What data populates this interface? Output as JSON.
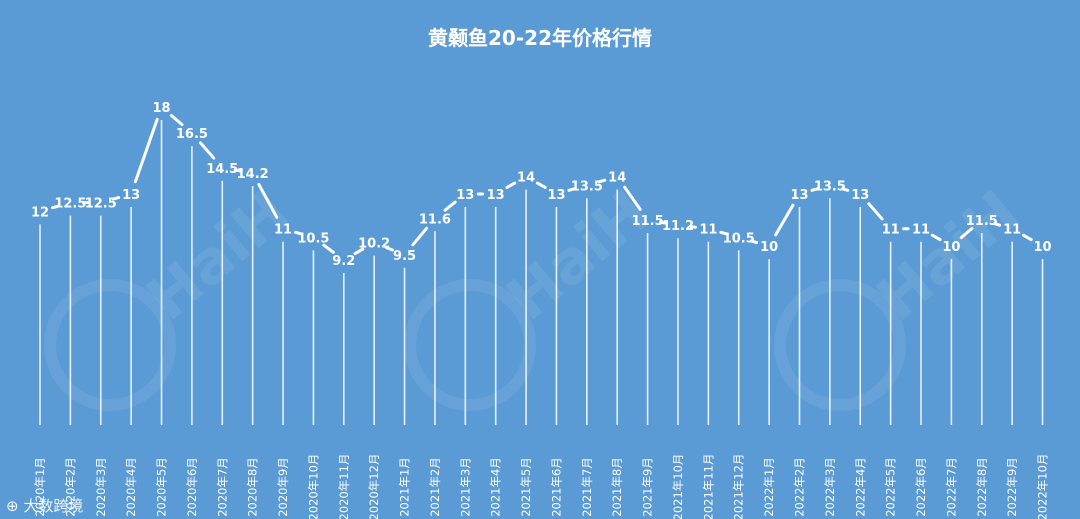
{
  "chart_data": {
    "type": "line",
    "title": "黄颡鱼20-22年价格行情",
    "xlabel": "",
    "ylabel": "",
    "grid": false,
    "legend": "none",
    "ylim": [
      0,
      18
    ],
    "categories": [
      "2020年1月",
      "2020年2月",
      "2020年3月",
      "2020年4月",
      "2020年5月",
      "2020年6月",
      "2020年7月",
      "2020年8月",
      "2020年9月",
      "2020年10月",
      "2020年11月",
      "2020年12月",
      "2021年1月",
      "2021年2月",
      "2021年3月",
      "2021年4月",
      "2021年5月",
      "2021年6月",
      "2021年7月",
      "2021年8月",
      "2021年9月",
      "2021年10月",
      "2021年11月",
      "2021年12月",
      "2022年1月",
      "2022年2月",
      "2022年3月",
      "2022年4月",
      "2022年5月",
      "2022年6月",
      "2022年7月",
      "2022年8月",
      "2022年9月",
      "2022年10月"
    ],
    "series": [
      {
        "values": [
          12,
          12.5,
          12.5,
          13,
          18,
          16.5,
          14.5,
          14.2,
          11,
          10.5,
          9.2,
          10.2,
          9.5,
          11.6,
          13,
          13,
          14,
          13,
          13.5,
          14,
          11.5,
          11.2,
          11,
          10.5,
          10,
          13,
          13.5,
          13,
          11,
          11,
          10,
          11.5,
          11,
          10
        ]
      }
    ]
  },
  "watermark": {
    "text": "HaiH",
    "repeat": 3
  },
  "footer": {
    "text": "大数跨境"
  },
  "colors": {
    "background": "#5b9bd5",
    "marks": "#ffffff"
  }
}
